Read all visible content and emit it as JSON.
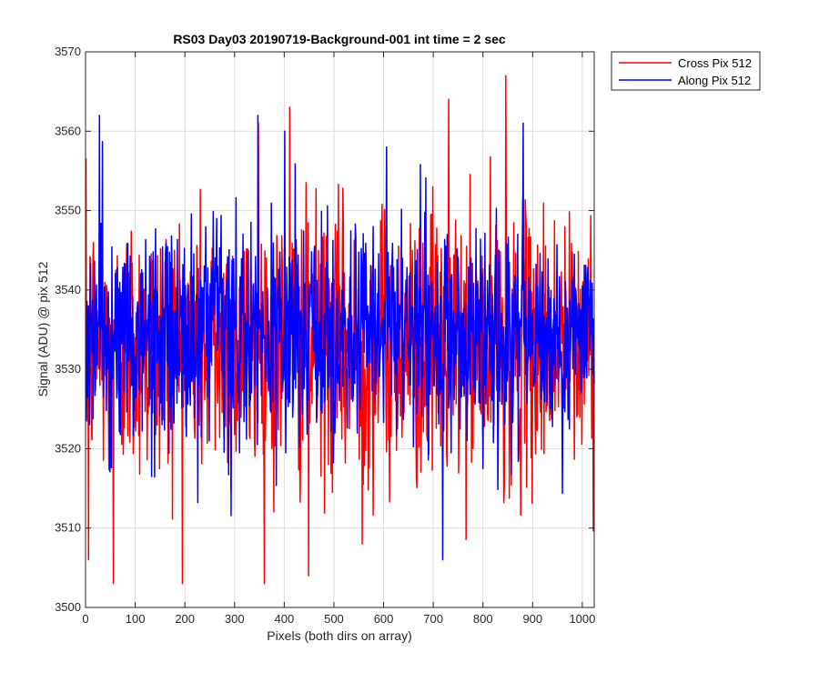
{
  "chart_data": {
    "type": "line",
    "title": "RS03 Day03 20190719-Background-001 int time = 2 sec",
    "xlabel": "Pixels (both dirs on array)",
    "ylabel": "Signal (ADU) @ pix 512",
    "xlim": [
      0,
      1024
    ],
    "ylim": [
      3500,
      3570
    ],
    "xticks": [
      0,
      100,
      200,
      300,
      400,
      500,
      600,
      700,
      800,
      900,
      1000
    ],
    "yticks": [
      3500,
      3510,
      3520,
      3530,
      3540,
      3550,
      3560,
      3570
    ],
    "grid": true,
    "legend_location": "outside-top-right",
    "series": [
      {
        "name": "Cross Pix 512",
        "color": "#ff0000",
        "summary": {
          "n_points": 1024,
          "mean": 3533,
          "min": 3503,
          "max": 3567
        },
        "peaks": [
          [
            55,
            3503
          ],
          [
            448,
            3504
          ],
          [
            556,
            3508
          ],
          [
            5,
            3506
          ],
          [
            845,
            3567
          ],
          [
            730,
            3564
          ],
          [
            347,
            3561
          ],
          [
            410,
            3563
          ]
        ]
      },
      {
        "name": "Along Pix 512",
        "color": "#0000ff",
        "summary": {
          "n_points": 1024,
          "mean": 3534,
          "min": 3506,
          "max": 3562
        },
        "peaks": [
          [
            27,
            3562
          ],
          [
            718,
            3506
          ],
          [
            880,
            3561
          ],
          [
            400,
            3560
          ],
          [
            605,
            3558
          ]
        ]
      }
    ]
  }
}
